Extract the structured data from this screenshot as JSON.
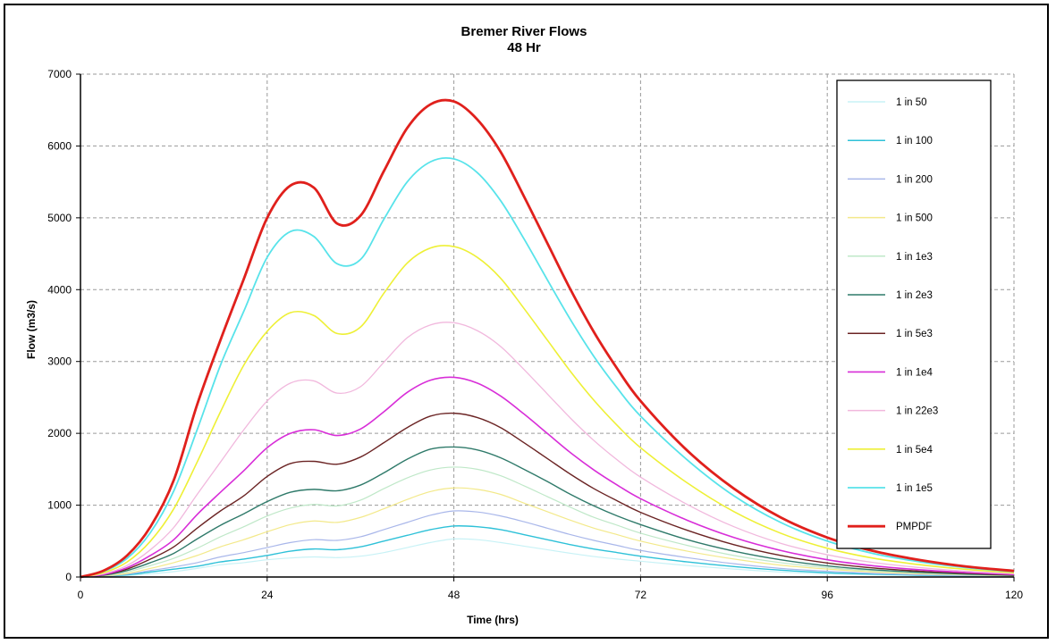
{
  "chart_data": {
    "type": "line",
    "title": "Bremer River Flows",
    "subtitle": "48 Hr",
    "xlabel": "Time (hrs)",
    "ylabel": "Flow (m3/s)",
    "xlim": [
      0,
      120
    ],
    "ylim": [
      0,
      7000
    ],
    "x_ticks": [
      0,
      24,
      48,
      72,
      96,
      120
    ],
    "y_ticks": [
      0,
      1000,
      2000,
      3000,
      4000,
      5000,
      6000,
      7000
    ],
    "grid": true,
    "legend_position": "right",
    "x": [
      0,
      3,
      6,
      9,
      12,
      15,
      18,
      21,
      24,
      27,
      30,
      33,
      36,
      39,
      42,
      45,
      48,
      51,
      54,
      57,
      60,
      63,
      66,
      69,
      72,
      78,
      84,
      90,
      96,
      102,
      108,
      114,
      120
    ],
    "series": [
      {
        "name": "1 in 50",
        "color": "#c8f2f6",
        "width": 1.2,
        "values": [
          0,
          5,
          20,
          45,
          75,
          120,
          170,
          200,
          240,
          265,
          280,
          270,
          290,
          340,
          410,
          480,
          530,
          520,
          480,
          430,
          380,
          330,
          285,
          250,
          220,
          160,
          110,
          70,
          45,
          30,
          20,
          12,
          6
        ]
      },
      {
        "name": "1 in 100",
        "color": "#2ec1d8",
        "width": 1.4,
        "values": [
          0,
          10,
          30,
          70,
          110,
          150,
          210,
          250,
          300,
          360,
          390,
          380,
          420,
          500,
          580,
          660,
          710,
          700,
          660,
          590,
          520,
          450,
          390,
          340,
          290,
          210,
          145,
          95,
          60,
          40,
          25,
          15,
          8
        ]
      },
      {
        "name": "1 in 200",
        "color": "#a9b7ea",
        "width": 1.2,
        "values": [
          0,
          12,
          40,
          90,
          140,
          200,
          280,
          340,
          410,
          480,
          520,
          510,
          560,
          660,
          760,
          860,
          920,
          905,
          850,
          770,
          680,
          590,
          510,
          440,
          370,
          270,
          185,
          120,
          80,
          50,
          30,
          18,
          10
        ]
      },
      {
        "name": "1 in 500",
        "color": "#f3e98a",
        "width": 1.2,
        "values": [
          0,
          15,
          50,
          120,
          200,
          300,
          420,
          520,
          630,
          730,
          780,
          760,
          830,
          950,
          1080,
          1190,
          1240,
          1220,
          1150,
          1030,
          910,
          790,
          680,
          590,
          500,
          360,
          250,
          165,
          110,
          70,
          45,
          28,
          15
        ]
      },
      {
        "name": "1 in 1e3",
        "color": "#bfe8c8",
        "width": 1.2,
        "values": [
          0,
          20,
          70,
          160,
          260,
          400,
          560,
          700,
          850,
          960,
          1010,
          990,
          1070,
          1230,
          1380,
          1490,
          1530,
          1500,
          1410,
          1270,
          1120,
          970,
          830,
          720,
          610,
          440,
          300,
          200,
          130,
          85,
          55,
          33,
          18
        ]
      },
      {
        "name": "1 in 2e3",
        "color": "#2f7a6a",
        "width": 1.4,
        "values": [
          0,
          25,
          90,
          200,
          330,
          530,
          720,
          880,
          1050,
          1180,
          1220,
          1200,
          1280,
          1450,
          1640,
          1780,
          1810,
          1770,
          1660,
          1500,
          1330,
          1150,
          990,
          850,
          730,
          520,
          360,
          240,
          155,
          100,
          65,
          40,
          22
        ]
      },
      {
        "name": "1 in 5e3",
        "color": "#6b2424",
        "width": 1.4,
        "values": [
          0,
          30,
          110,
          250,
          420,
          680,
          920,
          1130,
          1400,
          1580,
          1610,
          1570,
          1670,
          1870,
          2080,
          2240,
          2280,
          2220,
          2080,
          1870,
          1650,
          1430,
          1230,
          1060,
          900,
          650,
          450,
          300,
          195,
          125,
          80,
          50,
          28
        ]
      },
      {
        "name": "1 in 1e4",
        "color": "#d82ed8",
        "width": 1.6,
        "values": [
          0,
          35,
          130,
          300,
          520,
          870,
          1180,
          1480,
          1800,
          2000,
          2050,
          1970,
          2060,
          2300,
          2570,
          2740,
          2780,
          2700,
          2520,
          2270,
          2000,
          1730,
          1490,
          1280,
          1090,
          790,
          550,
          370,
          240,
          155,
          100,
          62,
          35
        ]
      },
      {
        "name": "1 in 22e3",
        "color": "#f1b8dd",
        "width": 1.3,
        "values": [
          0,
          45,
          160,
          380,
          690,
          1150,
          1600,
          2050,
          2450,
          2700,
          2730,
          2560,
          2650,
          2990,
          3330,
          3510,
          3540,
          3430,
          3210,
          2890,
          2550,
          2210,
          1900,
          1630,
          1390,
          1010,
          700,
          470,
          310,
          200,
          130,
          80,
          45
        ]
      },
      {
        "name": "1 in 5e4",
        "color": "#eef036",
        "width": 1.6,
        "values": [
          0,
          60,
          210,
          500,
          950,
          1600,
          2300,
          2950,
          3420,
          3680,
          3640,
          3390,
          3480,
          3950,
          4370,
          4580,
          4600,
          4450,
          4160,
          3740,
          3300,
          2860,
          2460,
          2110,
          1800,
          1310,
          910,
          610,
          400,
          260,
          170,
          105,
          60
        ]
      },
      {
        "name": "1 in 1e5",
        "color": "#58e3ea",
        "width": 1.8,
        "values": [
          0,
          80,
          260,
          620,
          1200,
          2050,
          2950,
          3700,
          4450,
          4810,
          4740,
          4360,
          4420,
          4980,
          5500,
          5780,
          5820,
          5630,
          5240,
          4710,
          4140,
          3580,
          3070,
          2630,
          2240,
          1630,
          1130,
          760,
          500,
          325,
          210,
          130,
          75
        ]
      },
      {
        "name": "PMPDF",
        "color": "#e0201c",
        "width": 2.8,
        "values": [
          0,
          90,
          300,
          700,
          1350,
          2400,
          3300,
          4150,
          5000,
          5450,
          5420,
          4920,
          5030,
          5650,
          6250,
          6580,
          6620,
          6370,
          5920,
          5300,
          4650,
          4000,
          3410,
          2900,
          2450,
          1760,
          1230,
          830,
          550,
          360,
          235,
          145,
          85
        ]
      }
    ]
  }
}
